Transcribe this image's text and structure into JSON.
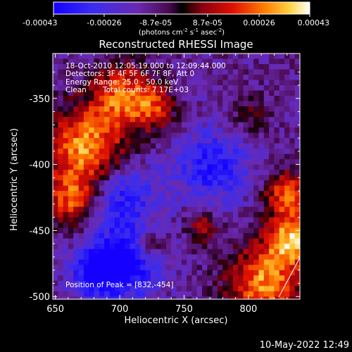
{
  "colorbar": {
    "tick_labels": [
      "-0.00043",
      "-0.00026",
      "-8.7e-05",
      "8.7e-05",
      "0.00026",
      "0.00043"
    ],
    "units_prefix": "(photons cm",
    "units_exp1": "-2",
    "units_mid": " s",
    "units_exp2": "-1",
    "units_suffix": " asec",
    "units_exp3": "-2",
    "units_close": ")",
    "range": [
      -0.00043,
      0.00043
    ]
  },
  "footer": {
    "timestamp": "10-May-2022 12:49"
  },
  "chart_data": {
    "type": "heatmap",
    "title": "Reconstructed RHESSI Image",
    "xlabel": "Heliocentric X (arcsec)",
    "ylabel": "Heliocentric Y (arcsec)",
    "xlim": [
      648,
      840
    ],
    "ylim": [
      -502,
      -316
    ],
    "x_ticks": [
      650,
      700,
      750,
      800
    ],
    "y_ticks": [
      -350,
      -400,
      -450,
      -500
    ],
    "annotations": {
      "time_range": "18-Oct-2010 12:05:19.000 to 12:09:44.000",
      "detectors": "Detectors: 3F 4F 5F 6F 7F 8F, Att 0",
      "energy": "Energy Range: 25.0 - 50.0 keV",
      "method": "Clean",
      "counts": "Total counts: 7.17E+03",
      "peak": "Position of Peak = [832,-454]"
    },
    "peak": [
      832,
      -454
    ],
    "colormap": "blue-purple-red-yellow-white",
    "intensity_sources": [
      {
        "x": 672,
        "y": -385,
        "amp": 1.0,
        "sigma": 22
      },
      {
        "x": 700,
        "y": -345,
        "amp": 0.8,
        "sigma": 16
      },
      {
        "x": 660,
        "y": -425,
        "amp": 0.7,
        "sigma": 14
      },
      {
        "x": 725,
        "y": -355,
        "amp": 0.6,
        "sigma": 12
      },
      {
        "x": 832,
        "y": -454,
        "amp": 1.0,
        "sigma": 14
      },
      {
        "x": 810,
        "y": -488,
        "amp": 0.95,
        "sigma": 20
      },
      {
        "x": 828,
        "y": -420,
        "amp": 0.8,
        "sigma": 12
      },
      {
        "x": 763,
        "y": -445,
        "amp": 0.5,
        "sigma": 9
      },
      {
        "x": 720,
        "y": -460,
        "amp": 0.55,
        "sigma": 10
      },
      {
        "x": 800,
        "y": -360,
        "amp": 0.35,
        "sigma": 10
      },
      {
        "x": 700,
        "y": -420,
        "amp": -0.6,
        "sigma": 18
      },
      {
        "x": 705,
        "y": -470,
        "amp": -0.9,
        "sigma": 18
      },
      {
        "x": 770,
        "y": -400,
        "amp": -0.6,
        "sigma": 20
      },
      {
        "x": 680,
        "y": -480,
        "amp": -0.7,
        "sigma": 14
      }
    ]
  }
}
